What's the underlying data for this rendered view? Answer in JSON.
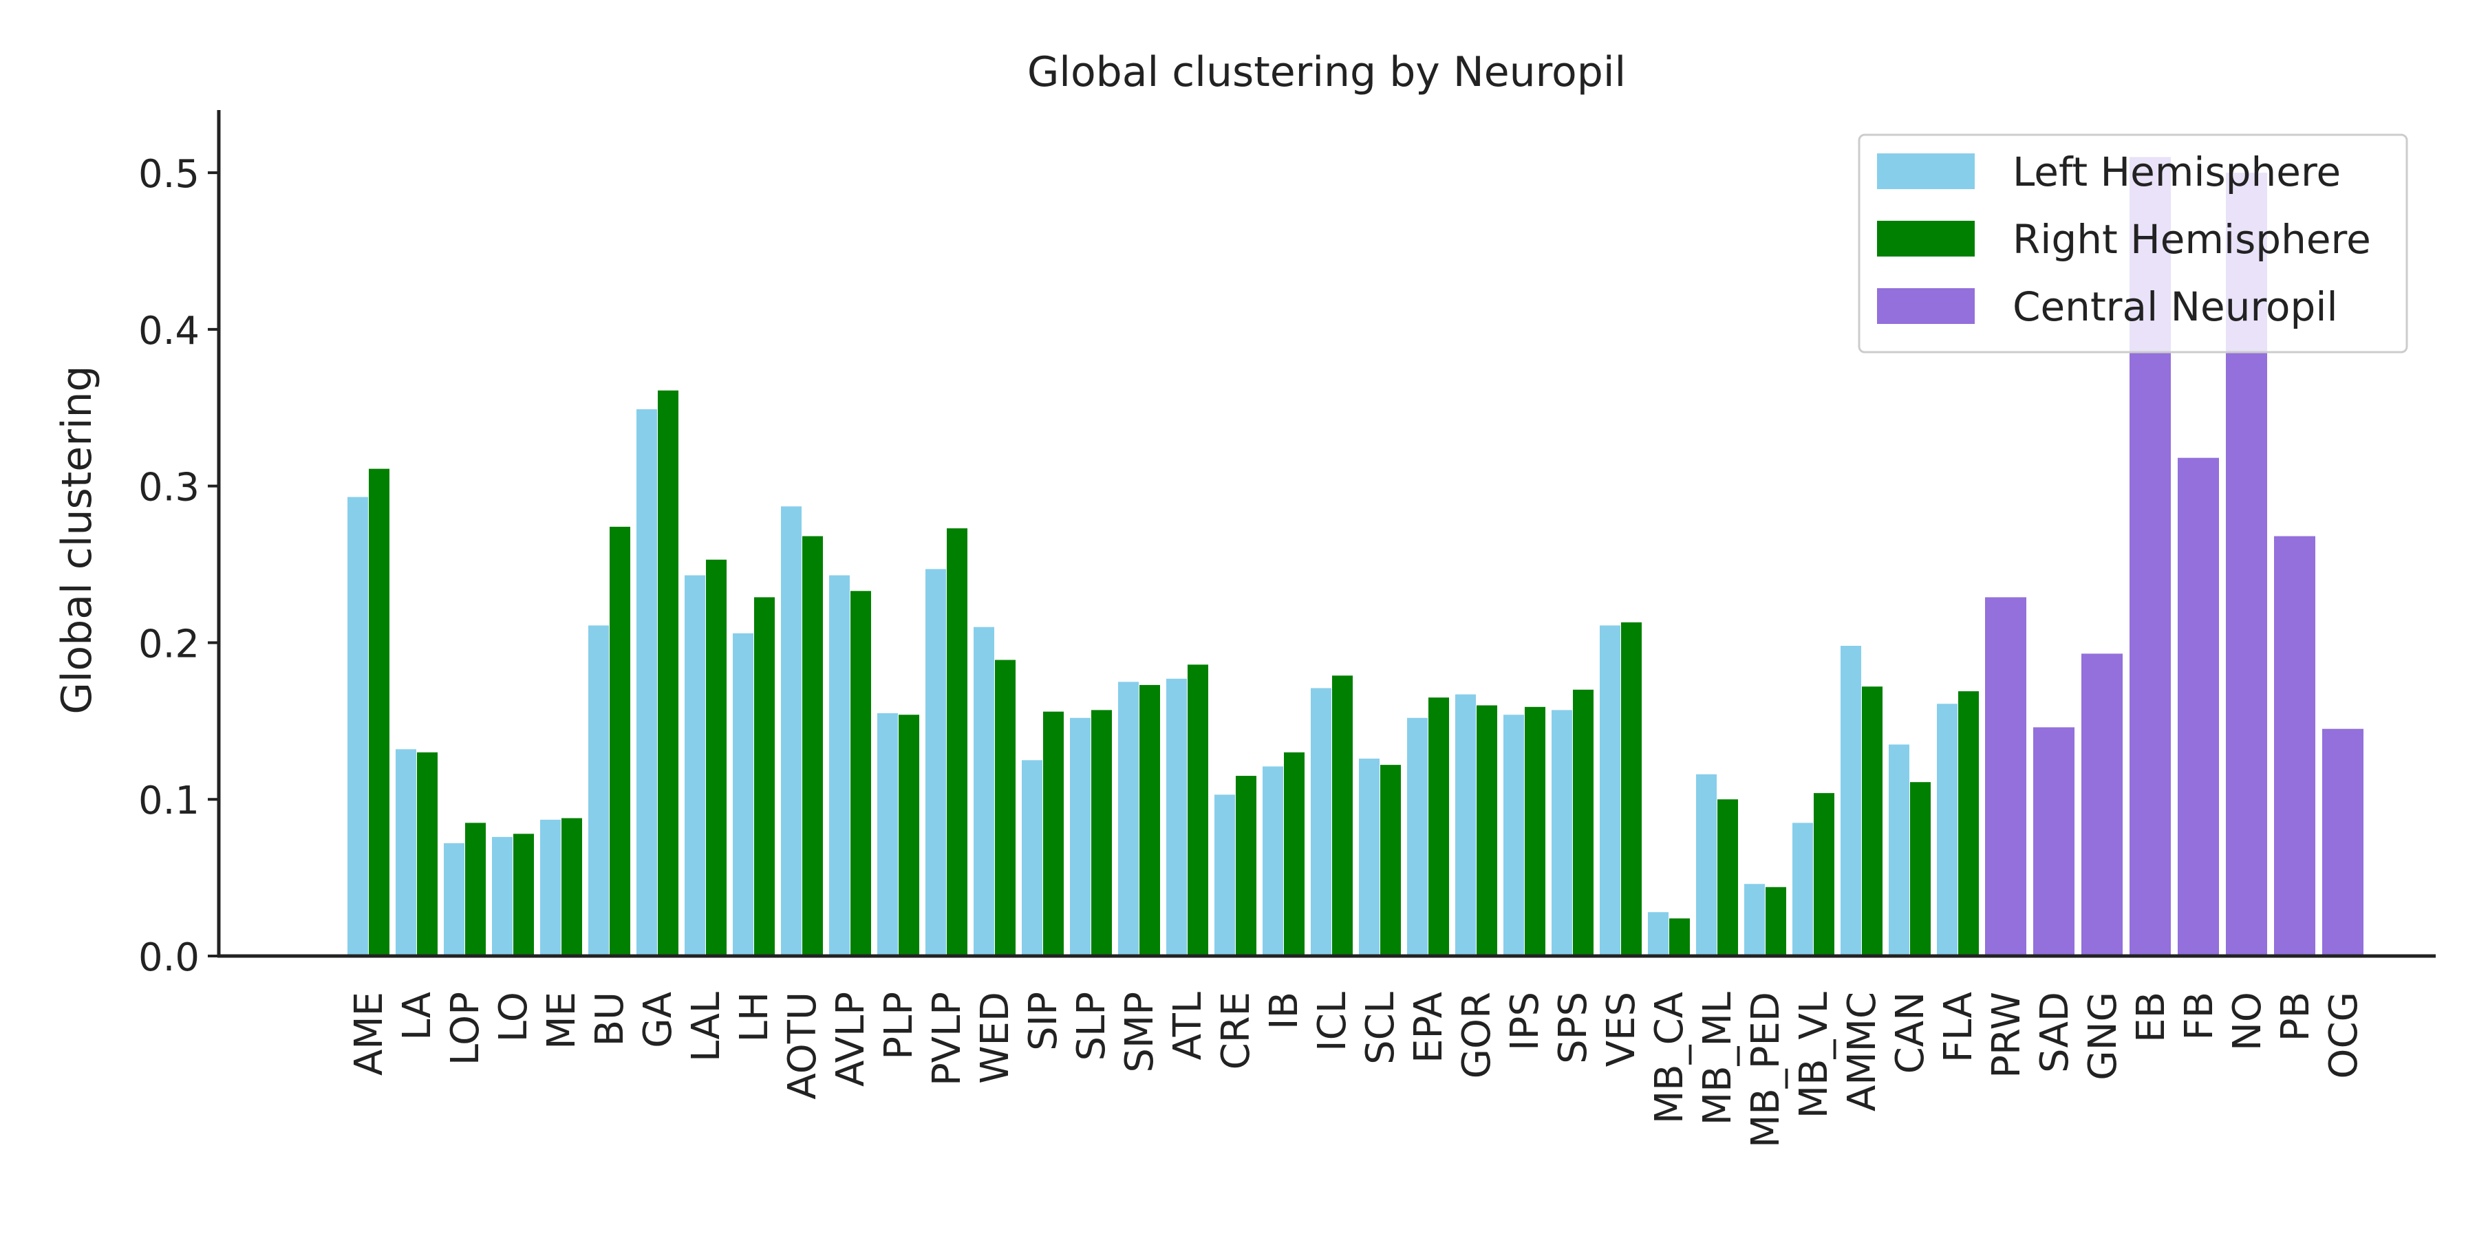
{
  "chart_data": {
    "type": "bar",
    "title": "Global clustering by Neuropil",
    "xlabel": "",
    "ylabel": "Global clustering",
    "ylim": [
      0,
      0.54
    ],
    "yticks": [
      0.0,
      0.1,
      0.2,
      0.3,
      0.4,
      0.5
    ],
    "ytick_labels": [
      "0.0",
      "0.1",
      "0.2",
      "0.3",
      "0.4",
      "0.5"
    ],
    "grid": false,
    "legend_position": "top-right",
    "colors": {
      "left": "#87ceeb",
      "right": "#008000",
      "central": "#9370db"
    },
    "legend": [
      {
        "label": "Left Hemisphere",
        "color": "#87ceeb"
      },
      {
        "label": "Right Hemisphere",
        "color": "#008000"
      },
      {
        "label": "Central Neuropil",
        "color": "#9370db"
      }
    ],
    "paired_categories": [
      "AME",
      "LA",
      "LOP",
      "LO",
      "ME",
      "BU",
      "GA",
      "LAL",
      "LH",
      "AOTU",
      "AVLP",
      "PLP",
      "PVLP",
      "WED",
      "SIP",
      "SLP",
      "SMP",
      "ATL",
      "CRE",
      "IB",
      "ICL",
      "SCL",
      "EPA",
      "GOR",
      "IPS",
      "SPS",
      "VES",
      "MB_CA",
      "MB_ML",
      "MB_PED",
      "MB_VL",
      "AMMC",
      "CAN",
      "FLA"
    ],
    "series": [
      {
        "name": "Left Hemisphere",
        "values": [
          0.293,
          0.132,
          0.072,
          0.076,
          0.087,
          0.211,
          0.349,
          0.243,
          0.206,
          0.287,
          0.243,
          0.155,
          0.247,
          0.21,
          0.125,
          0.152,
          0.175,
          0.177,
          0.103,
          0.121,
          0.171,
          0.126,
          0.152,
          0.167,
          0.154,
          0.157,
          0.211,
          0.028,
          0.116,
          0.046,
          0.085,
          0.198,
          0.135,
          0.161
        ]
      },
      {
        "name": "Right Hemisphere",
        "values": [
          0.311,
          0.13,
          0.085,
          0.078,
          0.088,
          0.274,
          0.361,
          0.253,
          0.229,
          0.268,
          0.233,
          0.154,
          0.273,
          0.189,
          0.156,
          0.157,
          0.173,
          0.186,
          0.115,
          0.13,
          0.179,
          0.122,
          0.165,
          0.16,
          0.159,
          0.17,
          0.213,
          0.024,
          0.1,
          0.044,
          0.104,
          0.172,
          0.111,
          0.169
        ]
      }
    ],
    "central_categories": [
      "PRW",
      "SAD",
      "GNG",
      "EB",
      "FB",
      "NO",
      "PB",
      "OCG"
    ],
    "central_values": [
      0.229,
      0.146,
      0.193,
      0.51,
      0.318,
      0.5,
      0.268,
      0.145
    ]
  }
}
